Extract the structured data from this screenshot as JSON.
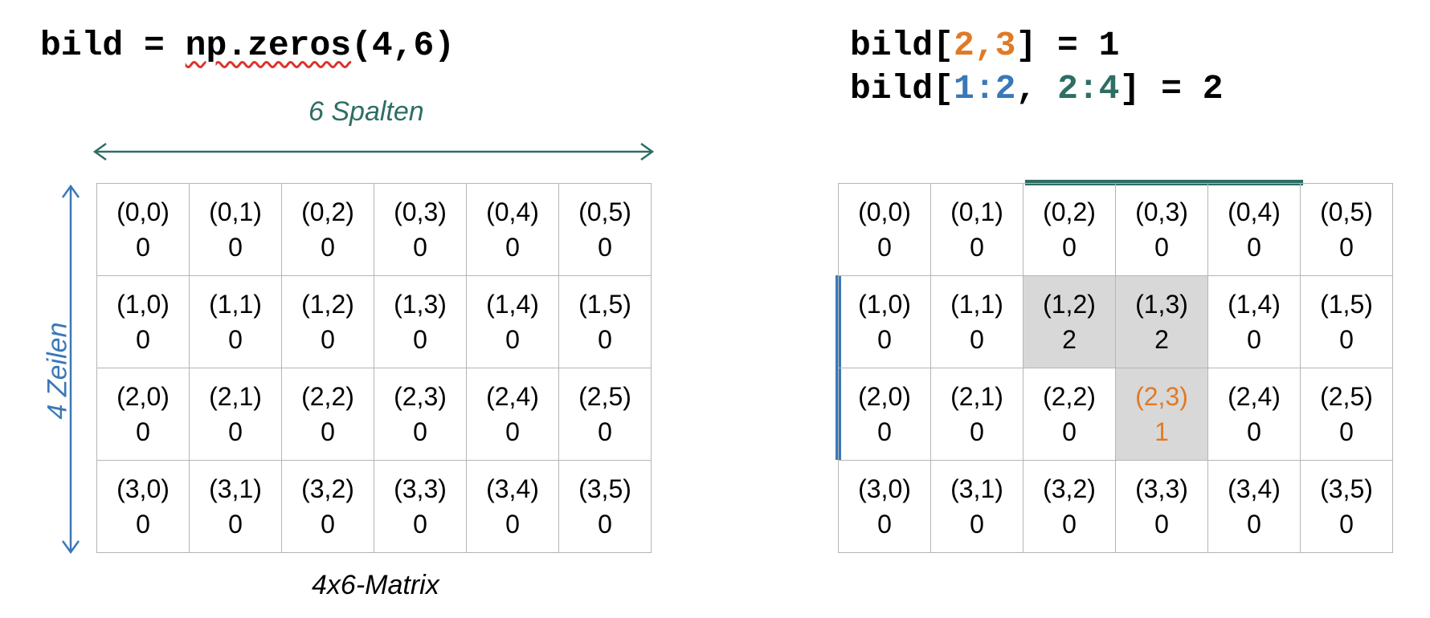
{
  "left": {
    "code": {
      "prefix": "bild = ",
      "squiggle": "np.zeros",
      "suffix": "(4,6)"
    },
    "columns_label": "6 Spalten",
    "rows_label": "4 Zeilen",
    "caption": "4x6-Matrix",
    "cells": [
      [
        {
          "idx": "(0,0)",
          "val": "0"
        },
        {
          "idx": "(0,1)",
          "val": "0"
        },
        {
          "idx": "(0,2)",
          "val": "0"
        },
        {
          "idx": "(0,3)",
          "val": "0"
        },
        {
          "idx": "(0,4)",
          "val": "0"
        },
        {
          "idx": "(0,5)",
          "val": "0"
        }
      ],
      [
        {
          "idx": "(1,0)",
          "val": "0"
        },
        {
          "idx": "(1,1)",
          "val": "0"
        },
        {
          "idx": "(1,2)",
          "val": "0"
        },
        {
          "idx": "(1,3)",
          "val": "0"
        },
        {
          "idx": "(1,4)",
          "val": "0"
        },
        {
          "idx": "(1,5)",
          "val": "0"
        }
      ],
      [
        {
          "idx": "(2,0)",
          "val": "0"
        },
        {
          "idx": "(2,1)",
          "val": "0"
        },
        {
          "idx": "(2,2)",
          "val": "0"
        },
        {
          "idx": "(2,3)",
          "val": "0"
        },
        {
          "idx": "(2,4)",
          "val": "0"
        },
        {
          "idx": "(2,5)",
          "val": "0"
        }
      ],
      [
        {
          "idx": "(3,0)",
          "val": "0"
        },
        {
          "idx": "(3,1)",
          "val": "0"
        },
        {
          "idx": "(3,2)",
          "val": "0"
        },
        {
          "idx": "(3,3)",
          "val": "0"
        },
        {
          "idx": "(3,4)",
          "val": "0"
        },
        {
          "idx": "(3,5)",
          "val": "0"
        }
      ]
    ]
  },
  "right": {
    "line1": {
      "prefix": "bild[",
      "index": "2,3",
      "suffix": "] = 1"
    },
    "line2": {
      "prefix": "bild[",
      "rows": "1:2",
      "sep": ", ",
      "cols": "2:4",
      "suffix": "] = 2"
    },
    "cells": [
      [
        {
          "idx": "(0,0)",
          "val": "0"
        },
        {
          "idx": "(0,1)",
          "val": "0"
        },
        {
          "idx": "(0,2)",
          "val": "0"
        },
        {
          "idx": "(0,3)",
          "val": "0"
        },
        {
          "idx": "(0,4)",
          "val": "0"
        },
        {
          "idx": "(0,5)",
          "val": "0"
        }
      ],
      [
        {
          "idx": "(1,0)",
          "val": "0"
        },
        {
          "idx": "(1,1)",
          "val": "0"
        },
        {
          "idx": "(1,2)",
          "val": "2",
          "hl": true
        },
        {
          "idx": "(1,3)",
          "val": "2",
          "hl": true
        },
        {
          "idx": "(1,4)",
          "val": "0"
        },
        {
          "idx": "(1,5)",
          "val": "0"
        }
      ],
      [
        {
          "idx": "(2,0)",
          "val": "0"
        },
        {
          "idx": "(2,1)",
          "val": "0"
        },
        {
          "idx": "(2,2)",
          "val": "0"
        },
        {
          "idx": "(2,3)",
          "val": "1",
          "hl": true,
          "orange": true
        },
        {
          "idx": "(2,4)",
          "val": "0"
        },
        {
          "idx": "(2,5)",
          "val": "0"
        }
      ],
      [
        {
          "idx": "(3,0)",
          "val": "0"
        },
        {
          "idx": "(3,1)",
          "val": "0"
        },
        {
          "idx": "(3,2)",
          "val": "0"
        },
        {
          "idx": "(3,3)",
          "val": "0"
        },
        {
          "idx": "(3,4)",
          "val": "0"
        },
        {
          "idx": "(3,5)",
          "val": "0"
        }
      ]
    ]
  },
  "colors": {
    "orange": "#e07a26",
    "blue": "#3a78b8",
    "teal": "#2e6e64",
    "highlight": "#d8d8d8"
  }
}
